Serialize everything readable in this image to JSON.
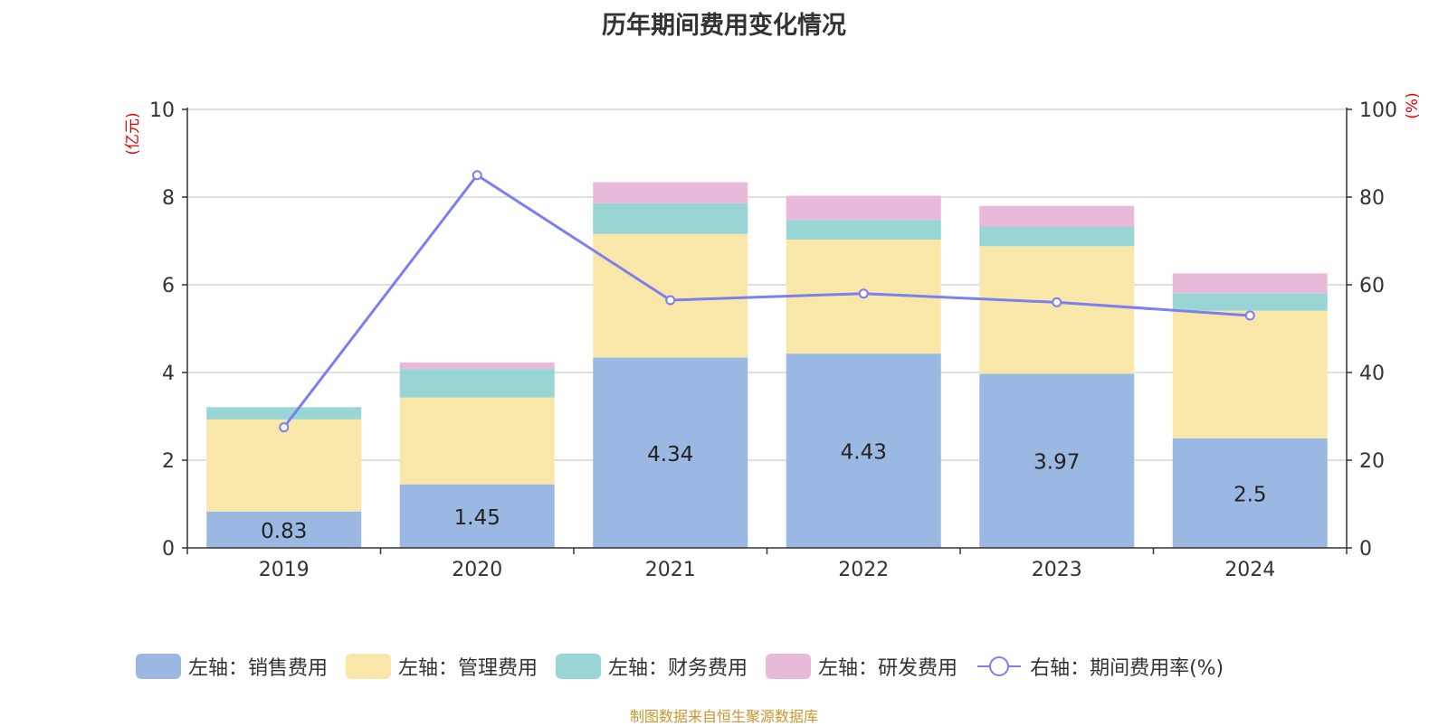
{
  "title": "历年期间费用变化情况",
  "source": "制图数据来自恒生聚源数据库",
  "chart_data": {
    "type": "bar",
    "stacked": true,
    "categories": [
      "2019",
      "2020",
      "2021",
      "2022",
      "2023",
      "2024"
    ],
    "left_axis": {
      "unit_label": "(亿元)",
      "ylim": [
        0,
        10
      ],
      "ticks": [
        "0",
        "2",
        "4",
        "6",
        "8",
        "10"
      ]
    },
    "right_axis": {
      "unit_label": "(%)",
      "ylim": [
        0,
        100
      ],
      "ticks": [
        "0",
        "20",
        "40",
        "60",
        "80",
        "100"
      ]
    },
    "grid": true,
    "legend_position": "bottom",
    "series": [
      {
        "name": "左轴：销售费用",
        "axis": "left",
        "color": "#9bb8e2",
        "values": [
          0.83,
          1.45,
          4.34,
          4.43,
          3.97,
          2.5
        ],
        "labels": [
          "0.83",
          "1.45",
          "4.34",
          "4.43",
          "3.97",
          "2.5"
        ]
      },
      {
        "name": "左轴：管理费用",
        "axis": "left",
        "color": "#f8e7a8",
        "values": [
          2.1,
          1.98,
          2.82,
          2.6,
          2.91,
          2.91
        ]
      },
      {
        "name": "左轴：财务费用",
        "axis": "left",
        "color": "#99d5d5",
        "values": [
          0.28,
          0.65,
          0.7,
          0.45,
          0.45,
          0.4
        ]
      },
      {
        "name": "左轴：研发费用",
        "axis": "left",
        "color": "#e9b9da",
        "values": [
          0,
          0.15,
          0.48,
          0.55,
          0.47,
          0.45
        ]
      },
      {
        "name": "右轴：期间费用率(%)",
        "axis": "right",
        "type": "line",
        "color": "#7b7ff0",
        "values": [
          27.5,
          85,
          56.5,
          58,
          56,
          53
        ]
      }
    ]
  }
}
